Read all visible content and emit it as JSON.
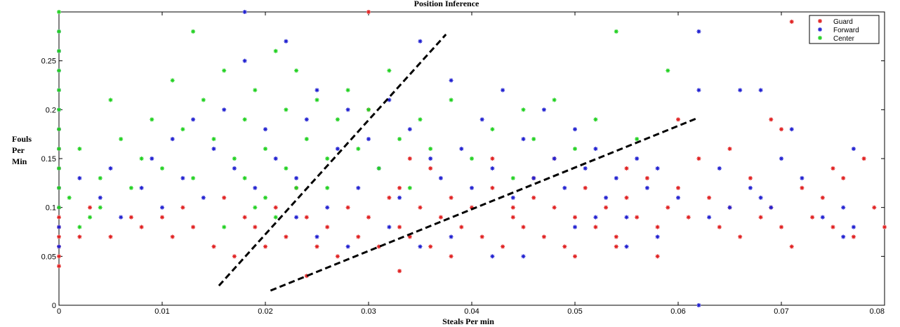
{
  "chart_data": {
    "type": "scatter",
    "title": "Position Inference",
    "xlabel": "Steals Per min",
    "ylabel_lines": [
      "Fouls",
      "Per",
      "Min"
    ],
    "xlim": [
      0,
      0.08
    ],
    "ylim": [
      0,
      0.3
    ],
    "xticks": [
      0,
      0.01,
      0.02,
      0.03,
      0.04,
      0.05,
      0.06,
      0.07,
      0.08
    ],
    "xtick_labels": [
      "0",
      "0.01",
      "0.02",
      "0.03",
      "0.04",
      "0.05",
      "0.06",
      "0.07",
      "0.08"
    ],
    "yticks": [
      0,
      0.05,
      0.1,
      0.15,
      0.2,
      0.25
    ],
    "ytick_labels": [
      "0",
      "0.05",
      "0.1",
      "0.15",
      "0.2",
      "0.25"
    ],
    "grid": false,
    "legend_position": "top-right",
    "series": [
      {
        "name": "Guard",
        "color": "#e02020",
        "marker": "star",
        "points": [
          [
            0,
            0.04
          ],
          [
            0,
            0.05
          ],
          [
            0,
            0.06
          ],
          [
            0,
            0.07
          ],
          [
            0,
            0.08
          ],
          [
            0,
            0.09
          ],
          [
            0,
            0.1
          ],
          [
            0,
            0.12
          ],
          [
            0,
            0.14
          ],
          [
            0,
            0.16
          ],
          [
            0,
            0.18
          ],
          [
            0.002,
            0.07
          ],
          [
            0.003,
            0.1
          ],
          [
            0.005,
            0.07
          ],
          [
            0.007,
            0.09
          ],
          [
            0.008,
            0.08
          ],
          [
            0.01,
            0.09
          ],
          [
            0.011,
            0.07
          ],
          [
            0.012,
            0.1
          ],
          [
            0.013,
            0.08
          ],
          [
            0.015,
            0.06
          ],
          [
            0.016,
            0.11
          ],
          [
            0.017,
            0.05
          ],
          [
            0.018,
            0.09
          ],
          [
            0.019,
            0.08
          ],
          [
            0.02,
            0.06
          ],
          [
            0.021,
            0.1
          ],
          [
            0.022,
            0.07
          ],
          [
            0.023,
            0.12
          ],
          [
            0.024,
            0.09
          ],
          [
            0.024,
            0.03
          ],
          [
            0.025,
            0.06
          ],
          [
            0.026,
            0.08
          ],
          [
            0.027,
            0.05
          ],
          [
            0.028,
            0.1
          ],
          [
            0.029,
            0.07
          ],
          [
            0.03,
            0.09
          ],
          [
            0.031,
            0.06
          ],
          [
            0.032,
            0.11
          ],
          [
            0.033,
            0.08
          ],
          [
            0.033,
            0.035
          ],
          [
            0.034,
            0.07
          ],
          [
            0.035,
            0.1
          ],
          [
            0.036,
            0.06
          ],
          [
            0.037,
            0.09
          ],
          [
            0.038,
            0.05
          ],
          [
            0.039,
            0.08
          ],
          [
            0.04,
            0.1
          ],
          [
            0.041,
            0.07
          ],
          [
            0.042,
            0.12
          ],
          [
            0.043,
            0.06
          ],
          [
            0.044,
            0.09
          ],
          [
            0.045,
            0.08
          ],
          [
            0.046,
            0.11
          ],
          [
            0.047,
            0.07
          ],
          [
            0.048,
            0.1
          ],
          [
            0.049,
            0.06
          ],
          [
            0.05,
            0.09
          ],
          [
            0.051,
            0.12
          ],
          [
            0.052,
            0.08
          ],
          [
            0.053,
            0.1
          ],
          [
            0.054,
            0.07
          ],
          [
            0.055,
            0.11
          ],
          [
            0.056,
            0.09
          ],
          [
            0.057,
            0.13
          ],
          [
            0.058,
            0.08
          ],
          [
            0.059,
            0.1
          ],
          [
            0.06,
            0.12
          ],
          [
            0.061,
            0.09
          ],
          [
            0.062,
            0.15
          ],
          [
            0.063,
            0.11
          ],
          [
            0.064,
            0.08
          ],
          [
            0.065,
            0.1
          ],
          [
            0.066,
            0.07
          ],
          [
            0.067,
            0.13
          ],
          [
            0.068,
            0.09
          ],
          [
            0.069,
            0.1
          ],
          [
            0.07,
            0.08
          ],
          [
            0.071,
            0.06
          ],
          [
            0.072,
            0.12
          ],
          [
            0.073,
            0.09
          ],
          [
            0.074,
            0.11
          ],
          [
            0.075,
            0.08
          ],
          [
            0.076,
            0.13
          ],
          [
            0.077,
            0.07
          ],
          [
            0.078,
            0.15
          ],
          [
            0.079,
            0.1
          ],
          [
            0.08,
            0.08
          ],
          [
            0.03,
            0.2
          ],
          [
            0.034,
            0.15
          ],
          [
            0.036,
            0.14
          ],
          [
            0.042,
            0.15
          ],
          [
            0.046,
            0.13
          ],
          [
            0.048,
            0.15
          ],
          [
            0.055,
            0.14
          ],
          [
            0.06,
            0.19
          ],
          [
            0.065,
            0.16
          ],
          [
            0.069,
            0.19
          ],
          [
            0.07,
            0.18
          ],
          [
            0.071,
            0.29
          ],
          [
            0.075,
            0.14
          ],
          [
            0.03,
            0.3
          ],
          [
            0.033,
            0.12
          ],
          [
            0.038,
            0.11
          ],
          [
            0.044,
            0.1
          ],
          [
            0.05,
            0.05
          ],
          [
            0.054,
            0.06
          ],
          [
            0.058,
            0.05
          ]
        ]
      },
      {
        "name": "Forward",
        "color": "#2020d0",
        "marker": "star",
        "points": [
          [
            0,
            0.06
          ],
          [
            0,
            0.08
          ],
          [
            0,
            0.1
          ],
          [
            0,
            0.12
          ],
          [
            0,
            0.14
          ],
          [
            0,
            0.16
          ],
          [
            0,
            0.18
          ],
          [
            0,
            0.2
          ],
          [
            0,
            0.22
          ],
          [
            0,
            0.24
          ],
          [
            0,
            0.26
          ],
          [
            0,
            0.28
          ],
          [
            0.002,
            0.13
          ],
          [
            0.004,
            0.11
          ],
          [
            0.005,
            0.14
          ],
          [
            0.006,
            0.09
          ],
          [
            0.008,
            0.12
          ],
          [
            0.009,
            0.15
          ],
          [
            0.01,
            0.1
          ],
          [
            0.011,
            0.17
          ],
          [
            0.012,
            0.13
          ],
          [
            0.013,
            0.19
          ],
          [
            0.014,
            0.11
          ],
          [
            0.015,
            0.16
          ],
          [
            0.016,
            0.2
          ],
          [
            0.017,
            0.14
          ],
          [
            0.018,
            0.25
          ],
          [
            0.019,
            0.12
          ],
          [
            0.02,
            0.18
          ],
          [
            0.021,
            0.15
          ],
          [
            0.022,
            0.27
          ],
          [
            0.023,
            0.13
          ],
          [
            0.024,
            0.19
          ],
          [
            0.025,
            0.22
          ],
          [
            0.026,
            0.1
          ],
          [
            0.027,
            0.16
          ],
          [
            0.028,
            0.2
          ],
          [
            0.029,
            0.12
          ],
          [
            0.03,
            0.17
          ],
          [
            0.031,
            0.14
          ],
          [
            0.032,
            0.21
          ],
          [
            0.033,
            0.11
          ],
          [
            0.034,
            0.18
          ],
          [
            0.035,
            0.27
          ],
          [
            0.036,
            0.15
          ],
          [
            0.037,
            0.13
          ],
          [
            0.038,
            0.23
          ],
          [
            0.039,
            0.16
          ],
          [
            0.04,
            0.12
          ],
          [
            0.041,
            0.19
          ],
          [
            0.042,
            0.14
          ],
          [
            0.043,
            0.22
          ],
          [
            0.044,
            0.11
          ],
          [
            0.045,
            0.17
          ],
          [
            0.046,
            0.13
          ],
          [
            0.047,
            0.2
          ],
          [
            0.048,
            0.15
          ],
          [
            0.049,
            0.12
          ],
          [
            0.05,
            0.18
          ],
          [
            0.051,
            0.14
          ],
          [
            0.052,
            0.16
          ],
          [
            0.053,
            0.11
          ],
          [
            0.054,
            0.13
          ],
          [
            0.055,
            0.09
          ],
          [
            0.056,
            0.15
          ],
          [
            0.057,
            0.12
          ],
          [
            0.058,
            0.14
          ],
          [
            0.06,
            0.11
          ],
          [
            0.062,
            0.28
          ],
          [
            0.062,
            0.22
          ],
          [
            0.064,
            0.14
          ],
          [
            0.065,
            0.1
          ],
          [
            0.066,
            0.22
          ],
          [
            0.067,
            0.12
          ],
          [
            0.068,
            0.22
          ],
          [
            0.069,
            0.1
          ],
          [
            0.071,
            0.18
          ],
          [
            0.072,
            0.13
          ],
          [
            0.076,
            0.1
          ],
          [
            0.077,
            0.16
          ],
          [
            0.018,
            0.3
          ],
          [
            0.023,
            0.09
          ],
          [
            0.025,
            0.07
          ],
          [
            0.028,
            0.06
          ],
          [
            0.032,
            0.08
          ],
          [
            0.035,
            0.06
          ],
          [
            0.038,
            0.07
          ],
          [
            0.042,
            0.05
          ],
          [
            0.045,
            0.05
          ],
          [
            0.05,
            0.08
          ],
          [
            0.052,
            0.09
          ],
          [
            0.055,
            0.06
          ],
          [
            0.058,
            0.07
          ],
          [
            0.062,
            0.0
          ],
          [
            0.063,
            0.09
          ],
          [
            0.068,
            0.11
          ],
          [
            0.07,
            0.15
          ],
          [
            0.074,
            0.09
          ],
          [
            0.076,
            0.07
          ],
          [
            0.077,
            0.08
          ]
        ]
      },
      {
        "name": "Center",
        "color": "#20d020",
        "marker": "star",
        "points": [
          [
            0,
            0.1
          ],
          [
            0,
            0.12
          ],
          [
            0,
            0.14
          ],
          [
            0,
            0.16
          ],
          [
            0,
            0.18
          ],
          [
            0,
            0.2
          ],
          [
            0,
            0.22
          ],
          [
            0,
            0.24
          ],
          [
            0,
            0.26
          ],
          [
            0,
            0.28
          ],
          [
            0,
            0.3
          ],
          [
            0.002,
            0.16
          ],
          [
            0.004,
            0.13
          ],
          [
            0.005,
            0.21
          ],
          [
            0.006,
            0.17
          ],
          [
            0.007,
            0.12
          ],
          [
            0.008,
            0.15
          ],
          [
            0.009,
            0.19
          ],
          [
            0.01,
            0.14
          ],
          [
            0.011,
            0.23
          ],
          [
            0.012,
            0.18
          ],
          [
            0.013,
            0.28
          ],
          [
            0.013,
            0.13
          ],
          [
            0.014,
            0.21
          ],
          [
            0.015,
            0.17
          ],
          [
            0.016,
            0.24
          ],
          [
            0.017,
            0.15
          ],
          [
            0.018,
            0.19
          ],
          [
            0.019,
            0.22
          ],
          [
            0.02,
            0.16
          ],
          [
            0.021,
            0.26
          ],
          [
            0.022,
            0.2
          ],
          [
            0.022,
            0.14
          ],
          [
            0.023,
            0.24
          ],
          [
            0.024,
            0.17
          ],
          [
            0.025,
            0.21
          ],
          [
            0.026,
            0.15
          ],
          [
            0.027,
            0.19
          ],
          [
            0.028,
            0.22
          ],
          [
            0.029,
            0.16
          ],
          [
            0.03,
            0.2
          ],
          [
            0.031,
            0.14
          ],
          [
            0.032,
            0.24
          ],
          [
            0.033,
            0.17
          ],
          [
            0.034,
            0.12
          ],
          [
            0.035,
            0.19
          ],
          [
            0.036,
            0.16
          ],
          [
            0.038,
            0.21
          ],
          [
            0.04,
            0.15
          ],
          [
            0.042,
            0.18
          ],
          [
            0.044,
            0.13
          ],
          [
            0.046,
            0.17
          ],
          [
            0.048,
            0.21
          ],
          [
            0.05,
            0.16
          ],
          [
            0.052,
            0.19
          ],
          [
            0.054,
            0.28
          ],
          [
            0.056,
            0.17
          ],
          [
            0.059,
            0.24
          ],
          [
            0.02,
            0.11
          ],
          [
            0.023,
            0.12
          ],
          [
            0.026,
            0.12
          ],
          [
            0.018,
            0.13
          ],
          [
            0.021,
            0.09
          ],
          [
            0.016,
            0.08
          ],
          [
            0.019,
            0.1
          ],
          [
            0.003,
            0.09
          ],
          [
            0.001,
            0.11
          ],
          [
            0.002,
            0.08
          ],
          [
            0.004,
            0.1
          ],
          [
            0.045,
            0.2
          ]
        ]
      }
    ],
    "annotations": [
      {
        "type": "dashed-line",
        "from": [
          0.0155,
          0.02
        ],
        "to": [
          0.0375,
          0.277
        ]
      },
      {
        "type": "dashed-line",
        "from": [
          0.0205,
          0.015
        ],
        "to": [
          0.062,
          0.192
        ]
      }
    ]
  }
}
